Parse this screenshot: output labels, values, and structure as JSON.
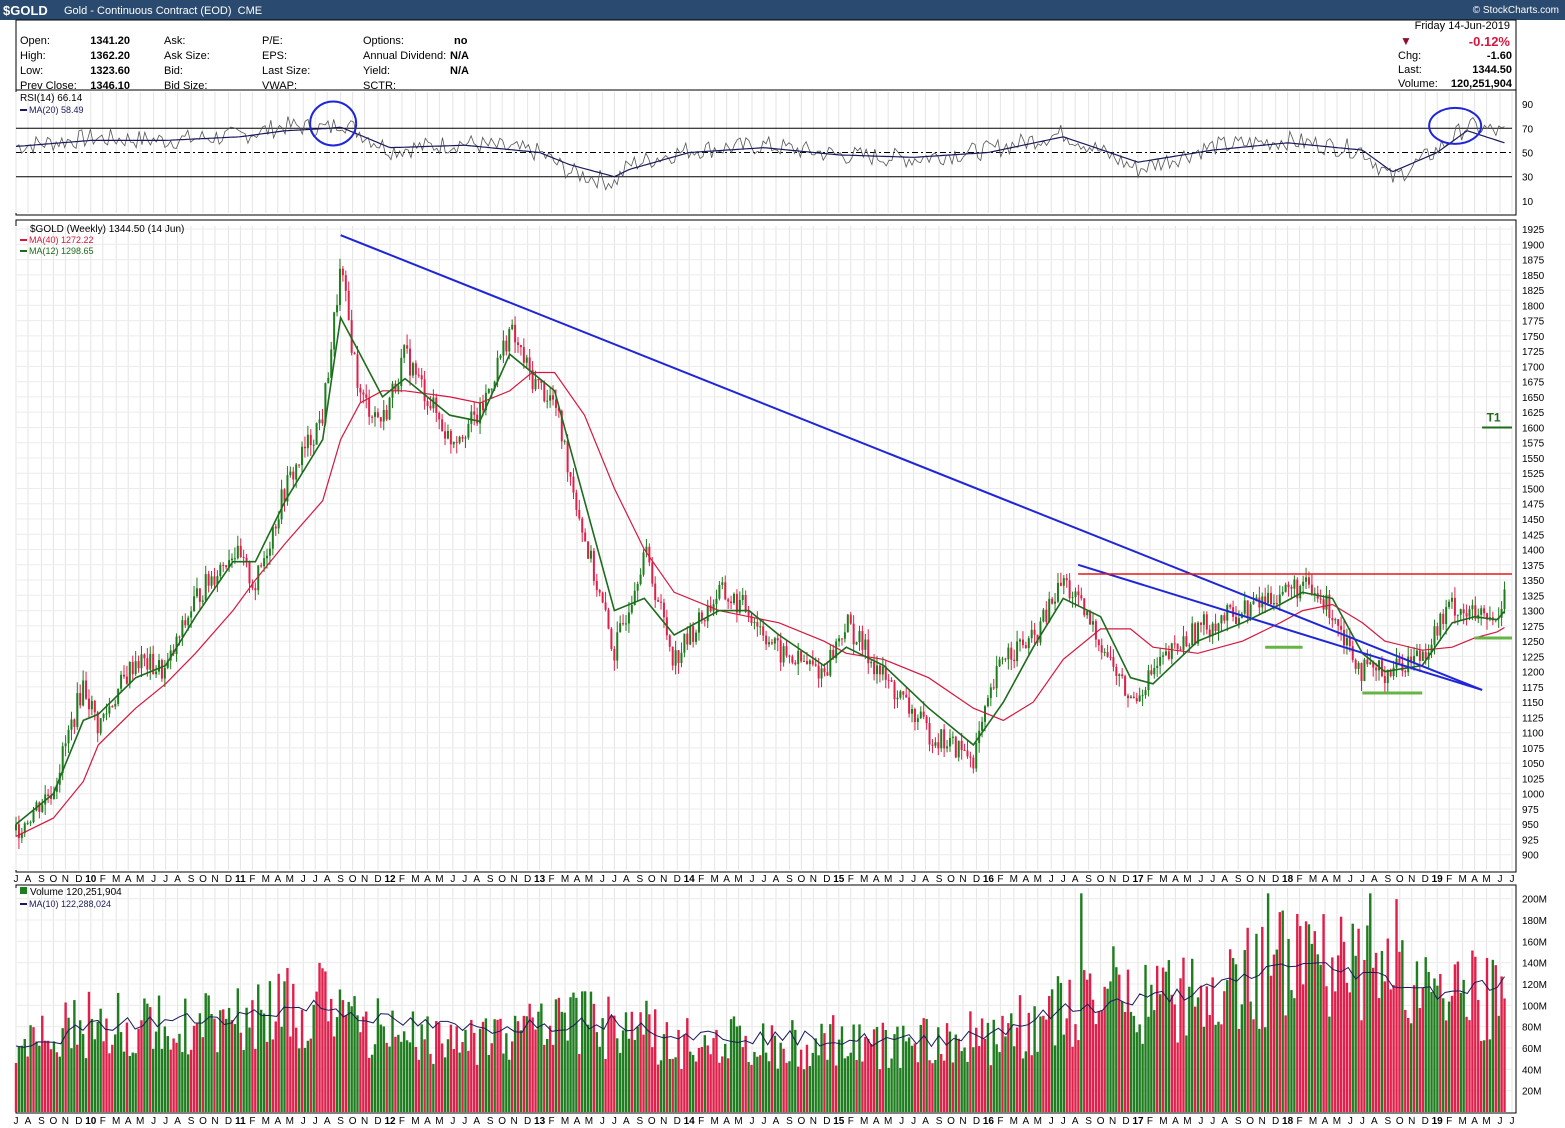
{
  "header": {
    "symbol": "$GOLD",
    "description": "Gold - Continuous Contract (EOD)",
    "exchange": "CME",
    "logo": "© StockCharts.com"
  },
  "quote": {
    "col1": [
      [
        "Open:",
        "1341.20"
      ],
      [
        "High:",
        "1362.20"
      ],
      [
        "Low:",
        "1323.60"
      ],
      [
        "Prev Close:",
        "1346.10"
      ]
    ],
    "col2": [
      "Ask:",
      "Ask Size:",
      "Bid:",
      "Bid Size:"
    ],
    "col3": [
      "P/E:",
      "EPS:",
      "Last Size:",
      "VWAP:"
    ],
    "col4": [
      [
        "Options:",
        "no"
      ],
      [
        "Annual Dividend:",
        "N/A"
      ],
      [
        "Yield:",
        "N/A"
      ],
      [
        "SCTR:",
        ""
      ]
    ],
    "date": "Friday  14-Jun-2019",
    "change_pct": "-0.12%",
    "right": [
      [
        "Chg:",
        "-1.60"
      ],
      [
        "Last:",
        "1344.50"
      ],
      [
        "Volume:",
        "120,251,904"
      ]
    ]
  },
  "colors": {
    "up": "#1e7d1e",
    "down": "#e0204a",
    "trend": "#1f26d8",
    "resist": "#dd1b1b",
    "ma40": "#d4183f",
    "ma12": "#1d6b1d",
    "rsi": "#1a1a5a",
    "support": "#66b544"
  },
  "chart_data": [
    {
      "type": "line",
      "title": "RSI(14) 66.14",
      "legend": [
        "RSI(14) 66.14",
        "MA(20) 58.49"
      ],
      "ylim": [
        0,
        100
      ],
      "yticks": [
        "90",
        "70",
        "50",
        "30",
        "10"
      ],
      "levels": [
        70,
        50,
        30
      ],
      "x": [
        2009.5,
        2010.0,
        2010.5,
        2011.0,
        2011.3,
        2011.6,
        2011.67,
        2012.0,
        2012.5,
        2013.0,
        2013.2,
        2013.5,
        2013.6,
        2014.0,
        2014.5,
        2015.0,
        2015.5,
        2016.0,
        2016.5,
        2017.0,
        2017.5,
        2018.0,
        2018.5,
        2018.7,
        2019.0,
        2019.2,
        2019.45
      ],
      "values": [
        55,
        62,
        60,
        64,
        72,
        70,
        76,
        52,
        58,
        50,
        34,
        25,
        40,
        52,
        56,
        48,
        45,
        52,
        66,
        36,
        55,
        60,
        52,
        28,
        52,
        72,
        66
      ],
      "ma20": [
        55,
        60,
        60,
        63,
        68,
        70,
        71,
        54,
        56,
        50,
        40,
        30,
        36,
        50,
        54,
        48,
        46,
        50,
        63,
        42,
        52,
        58,
        52,
        34,
        50,
        68,
        58
      ]
    },
    {
      "type": "line",
      "title": "$GOLD (Weekly) 1344.50 (14 Jun)",
      "legend": [
        "$GOLD (Weekly) 1344.50 (14 Jun)",
        "MA(40) 1272.22",
        "MA(12) 1298.65"
      ],
      "ylim": [
        875,
        1930
      ],
      "yticks": [
        "1925",
        "1900",
        "1875",
        "1850",
        "1825",
        "1800",
        "1775",
        "1750",
        "1725",
        "1700",
        "1675",
        "1650",
        "1625",
        "1600",
        "1575",
        "1550",
        "1525",
        "1500",
        "1475",
        "1450",
        "1425",
        "1400",
        "1375",
        "1350",
        "1325",
        "1300",
        "1275",
        "1250",
        "1225",
        "1200",
        "1175",
        "1150",
        "1125",
        "1100",
        "1075",
        "1050",
        "1025",
        "1000",
        "975",
        "950",
        "925",
        "900"
      ],
      "xlim": [
        2009.5,
        2019.5
      ],
      "x": [
        2009.5,
        2009.75,
        2009.95,
        2010.05,
        2010.3,
        2010.5,
        2010.7,
        2010.95,
        2011.1,
        2011.3,
        2011.55,
        2011.67,
        2011.8,
        2011.95,
        2012.1,
        2012.4,
        2012.6,
        2012.8,
        2012.95,
        2013.1,
        2013.3,
        2013.5,
        2013.7,
        2013.9,
        2014.2,
        2014.4,
        2014.6,
        2014.9,
        2015.05,
        2015.3,
        2015.6,
        2015.9,
        2016.1,
        2016.3,
        2016.5,
        2016.75,
        2016.95,
        2017.1,
        2017.4,
        2017.7,
        2017.95,
        2018.1,
        2018.3,
        2018.5,
        2018.65,
        2018.9,
        2019.1,
        2019.25,
        2019.4,
        2019.45
      ],
      "close": [
        940,
        1010,
        1180,
        1110,
        1220,
        1200,
        1320,
        1400,
        1340,
        1500,
        1620,
        1860,
        1650,
        1610,
        1720,
        1580,
        1620,
        1760,
        1680,
        1640,
        1420,
        1230,
        1400,
        1220,
        1330,
        1300,
        1230,
        1200,
        1280,
        1190,
        1100,
        1060,
        1230,
        1250,
        1350,
        1250,
        1150,
        1200,
        1270,
        1300,
        1330,
        1340,
        1300,
        1200,
        1200,
        1230,
        1310,
        1290,
        1280,
        1344.5
      ],
      "ma12": [
        950,
        1000,
        1120,
        1130,
        1190,
        1210,
        1290,
        1380,
        1380,
        1480,
        1580,
        1780,
        1720,
        1650,
        1680,
        1620,
        1610,
        1720,
        1690,
        1660,
        1480,
        1300,
        1320,
        1260,
        1300,
        1300,
        1260,
        1210,
        1240,
        1210,
        1140,
        1080,
        1150,
        1240,
        1320,
        1290,
        1190,
        1180,
        1250,
        1280,
        1310,
        1330,
        1320,
        1230,
        1200,
        1210,
        1280,
        1290,
        1285,
        1298.65
      ],
      "ma40": [
        930,
        960,
        1020,
        1080,
        1140,
        1180,
        1230,
        1300,
        1350,
        1410,
        1480,
        1580,
        1640,
        1660,
        1660,
        1650,
        1640,
        1660,
        1690,
        1690,
        1620,
        1500,
        1400,
        1330,
        1300,
        1290,
        1280,
        1250,
        1230,
        1220,
        1190,
        1140,
        1120,
        1150,
        1220,
        1270,
        1270,
        1240,
        1230,
        1250,
        1280,
        1300,
        1310,
        1280,
        1250,
        1235,
        1240,
        1255,
        1265,
        1272.22
      ],
      "annotations": {
        "trendline": [
          [
            2011.67,
            1915
          ],
          [
            2019.3,
            1170
          ]
        ],
        "trendline2": [
          [
            2016.6,
            1375
          ],
          [
            2019.3,
            1170
          ]
        ],
        "resistance": [
          [
            2016.6,
            1360
          ],
          [
            2019.5,
            1360
          ]
        ],
        "support": [
          [
            2017.85,
            1240
          ],
          [
            2018.1,
            1240
          ],
          [
            2018.5,
            1165
          ],
          [
            2018.9,
            1165
          ],
          [
            2019.25,
            1255
          ],
          [
            2019.5,
            1255
          ]
        ],
        "target": {
          "label": "T1",
          "value": 1600
        }
      }
    },
    {
      "type": "bar",
      "title": "Volume 120,251,904",
      "legend": [
        "Volume 120,251,904",
        "MA(10) 122,288,024"
      ],
      "ylim": [
        0,
        210
      ],
      "yticks": [
        "200M",
        "180M",
        "160M",
        "140M",
        "120M",
        "100M",
        "80M",
        "60M",
        "40M",
        "20M"
      ],
      "x": [
        2009.5,
        2010.0,
        2010.5,
        2011.0,
        2011.5,
        2012.0,
        2012.5,
        2013.0,
        2013.5,
        2014.0,
        2014.5,
        2015.0,
        2015.5,
        2016.0,
        2016.5,
        2017.0,
        2017.5,
        2018.0,
        2018.5,
        2019.0,
        2019.45
      ],
      "values": [
        60,
        90,
        85,
        95,
        110,
        80,
        75,
        85,
        90,
        70,
        72,
        70,
        68,
        75,
        100,
        110,
        120,
        150,
        140,
        115,
        120
      ],
      "ma10": [
        55,
        80,
        85,
        90,
        100,
        85,
        78,
        82,
        85,
        72,
        70,
        68,
        66,
        74,
        95,
        105,
        115,
        140,
        130,
        112,
        122
      ]
    }
  ],
  "x_axis": {
    "labels": [
      [
        "J",
        2009.5
      ],
      [
        "A",
        2009.58
      ],
      [
        "S",
        2009.67
      ],
      [
        "O",
        2009.75
      ],
      [
        "N",
        2009.83
      ],
      [
        "D",
        2009.92
      ],
      [
        "10",
        2010.0
      ],
      [
        "F",
        2010.08
      ],
      [
        "M",
        2010.17
      ],
      [
        "A",
        2010.25
      ],
      [
        "M",
        2010.33
      ],
      [
        "J",
        2010.42
      ],
      [
        "J",
        2010.5
      ],
      [
        "A",
        2010.58
      ],
      [
        "S",
        2010.67
      ],
      [
        "O",
        2010.75
      ],
      [
        "N",
        2010.83
      ],
      [
        "D",
        2010.92
      ],
      [
        "11",
        2011.0
      ],
      [
        "F",
        2011.08
      ],
      [
        "M",
        2011.17
      ],
      [
        "A",
        2011.25
      ],
      [
        "M",
        2011.33
      ],
      [
        "J",
        2011.42
      ],
      [
        "J",
        2011.5
      ],
      [
        "A",
        2011.58
      ],
      [
        "S",
        2011.67
      ],
      [
        "O",
        2011.75
      ],
      [
        "N",
        2011.83
      ],
      [
        "D",
        2011.92
      ],
      [
        "12",
        2012.0
      ],
      [
        "F",
        2012.08
      ],
      [
        "M",
        2012.17
      ],
      [
        "A",
        2012.25
      ],
      [
        "M",
        2012.33
      ],
      [
        "J",
        2012.42
      ],
      [
        "J",
        2012.5
      ],
      [
        "A",
        2012.58
      ],
      [
        "S",
        2012.67
      ],
      [
        "O",
        2012.75
      ],
      [
        "N",
        2012.83
      ],
      [
        "D",
        2012.92
      ],
      [
        "13",
        2013.0
      ],
      [
        "F",
        2013.08
      ],
      [
        "M",
        2013.17
      ],
      [
        "A",
        2013.25
      ],
      [
        "M",
        2013.33
      ],
      [
        "J",
        2013.42
      ],
      [
        "J",
        2013.5
      ],
      [
        "A",
        2013.58
      ],
      [
        "S",
        2013.67
      ],
      [
        "O",
        2013.75
      ],
      [
        "N",
        2013.83
      ],
      [
        "D",
        2013.92
      ],
      [
        "14",
        2014.0
      ],
      [
        "F",
        2014.08
      ],
      [
        "M",
        2014.17
      ],
      [
        "A",
        2014.25
      ],
      [
        "M",
        2014.33
      ],
      [
        "J",
        2014.42
      ],
      [
        "J",
        2014.5
      ],
      [
        "A",
        2014.58
      ],
      [
        "S",
        2014.67
      ],
      [
        "O",
        2014.75
      ],
      [
        "N",
        2014.83
      ],
      [
        "D",
        2014.92
      ],
      [
        "15",
        2015.0
      ],
      [
        "F",
        2015.08
      ],
      [
        "M",
        2015.17
      ],
      [
        "A",
        2015.25
      ],
      [
        "M",
        2015.33
      ],
      [
        "J",
        2015.42
      ],
      [
        "J",
        2015.5
      ],
      [
        "A",
        2015.58
      ],
      [
        "S",
        2015.67
      ],
      [
        "O",
        2015.75
      ],
      [
        "N",
        2015.83
      ],
      [
        "D",
        2015.92
      ],
      [
        "16",
        2016.0
      ],
      [
        "F",
        2016.08
      ],
      [
        "M",
        2016.17
      ],
      [
        "A",
        2016.25
      ],
      [
        "M",
        2016.33
      ],
      [
        "J",
        2016.42
      ],
      [
        "J",
        2016.5
      ],
      [
        "A",
        2016.58
      ],
      [
        "S",
        2016.67
      ],
      [
        "O",
        2016.75
      ],
      [
        "N",
        2016.83
      ],
      [
        "D",
        2016.92
      ],
      [
        "17",
        2017.0
      ],
      [
        "F",
        2017.08
      ],
      [
        "M",
        2017.17
      ],
      [
        "A",
        2017.25
      ],
      [
        "M",
        2017.33
      ],
      [
        "J",
        2017.42
      ],
      [
        "J",
        2017.5
      ],
      [
        "A",
        2017.58
      ],
      [
        "S",
        2017.67
      ],
      [
        "O",
        2017.75
      ],
      [
        "N",
        2017.83
      ],
      [
        "D",
        2017.92
      ],
      [
        "18",
        2018.0
      ],
      [
        "F",
        2018.08
      ],
      [
        "M",
        2018.17
      ],
      [
        "A",
        2018.25
      ],
      [
        "M",
        2018.33
      ],
      [
        "J",
        2018.42
      ],
      [
        "J",
        2018.5
      ],
      [
        "A",
        2018.58
      ],
      [
        "S",
        2018.67
      ],
      [
        "O",
        2018.75
      ],
      [
        "N",
        2018.83
      ],
      [
        "D",
        2018.92
      ],
      [
        "19",
        2019.0
      ],
      [
        "F",
        2019.08
      ],
      [
        "M",
        2019.17
      ],
      [
        "A",
        2019.25
      ],
      [
        "M",
        2019.33
      ],
      [
        "J",
        2019.42
      ],
      [
        "J",
        2019.5
      ]
    ]
  }
}
